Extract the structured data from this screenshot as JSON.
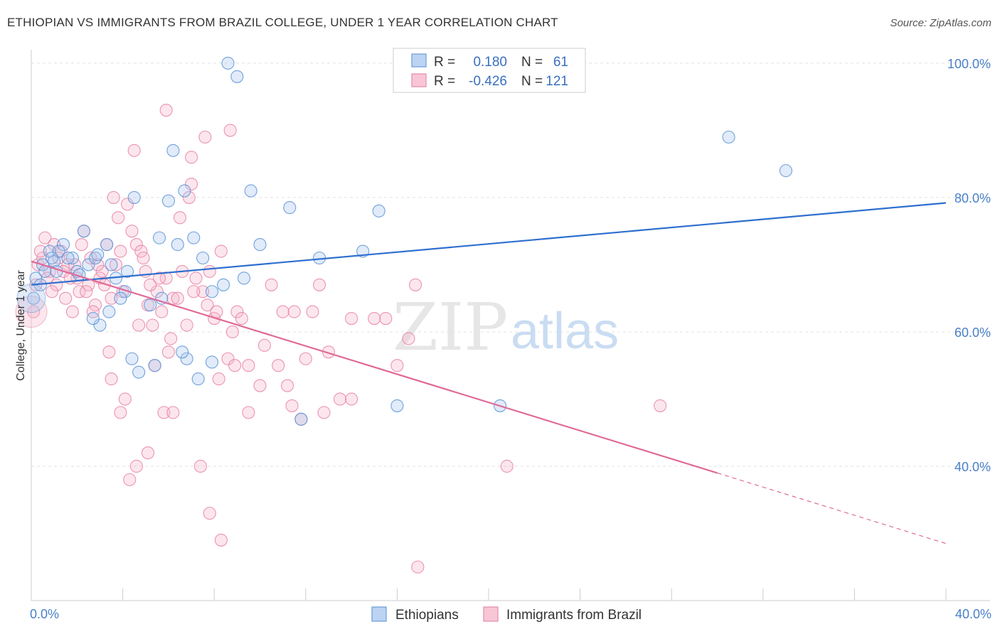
{
  "title": "ETHIOPIAN VS IMMIGRANTS FROM BRAZIL COLLEGE, UNDER 1 YEAR CORRELATION CHART",
  "source": "Source: ZipAtlas.com",
  "watermark": {
    "zip": "ZIP",
    "atlas": "atlas"
  },
  "chart_data": {
    "type": "scatter",
    "title": "ETHIOPIAN VS IMMIGRANTS FROM BRAZIL COLLEGE, UNDER 1 YEAR CORRELATION CHART",
    "xlabel": "",
    "ylabel": "College, Under 1 year",
    "xlim": [
      0,
      40
    ],
    "ylim": [
      20,
      102
    ],
    "x_tick_labels": [
      "0.0%",
      "40.0%"
    ],
    "y_ticks": [
      40,
      60,
      80,
      100
    ],
    "y_tick_labels": [
      "40.0%",
      "60.0%",
      "80.0%",
      "100.0%"
    ],
    "grid": true,
    "legend_position": "top-center",
    "colors": {
      "blue": "#5b93d6",
      "pink": "#e882a4",
      "blue_line": "#2e6fce",
      "pink_line": "#e06a98"
    },
    "stats": [
      {
        "series": "Ethiopians",
        "r_label": "R =",
        "r": "0.180",
        "n_label": "N =",
        "n": "61"
      },
      {
        "series": "Immigrants from Brazil",
        "r_label": "R =",
        "r": "-0.426",
        "n_label": "N =",
        "n": "121"
      }
    ],
    "series": [
      {
        "name": "Ethiopians",
        "color": "#5b93d6",
        "trend": {
          "x0": 0.0,
          "y0": 67.0,
          "x1": 40.0,
          "y1": 79.2,
          "dash_from": null
        },
        "points": [
          [
            0.1,
            65
          ],
          [
            0.2,
            68
          ],
          [
            0.5,
            70
          ],
          [
            0.6,
            69
          ],
          [
            0.8,
            72
          ],
          [
            1.0,
            70.5
          ],
          [
            1.1,
            69
          ],
          [
            1.4,
            73
          ],
          [
            1.8,
            71
          ],
          [
            2.0,
            69
          ],
          [
            2.3,
            75
          ],
          [
            2.5,
            70
          ],
          [
            2.8,
            71
          ],
          [
            3.0,
            61
          ],
          [
            3.3,
            73
          ],
          [
            3.5,
            70
          ],
          [
            3.7,
            68
          ],
          [
            4.1,
            66
          ],
          [
            4.5,
            80
          ],
          [
            5.2,
            64
          ],
          [
            5.6,
            74
          ],
          [
            6.0,
            79.5
          ],
          [
            6.4,
            73
          ],
          [
            6.7,
            81
          ],
          [
            7.1,
            74
          ],
          [
            7.5,
            71
          ],
          [
            7.9,
            66
          ],
          [
            8.4,
            67
          ],
          [
            9.3,
            68
          ],
          [
            9.6,
            81
          ],
          [
            10.0,
            73
          ],
          [
            11.3,
            78.5
          ],
          [
            12.6,
            71
          ],
          [
            14.5,
            72
          ],
          [
            15.2,
            78
          ],
          [
            8.6,
            100
          ],
          [
            9.0,
            98
          ],
          [
            6.2,
            87
          ],
          [
            2.7,
            62
          ],
          [
            3.4,
            63
          ],
          [
            4.4,
            56
          ],
          [
            4.7,
            54
          ],
          [
            5.4,
            55
          ],
          [
            6.8,
            56
          ],
          [
            7.9,
            55.5
          ],
          [
            11.8,
            47
          ],
          [
            16.0,
            49
          ],
          [
            20.5,
            49
          ],
          [
            30.5,
            89
          ],
          [
            33.0,
            84
          ],
          [
            1.6,
            71
          ],
          [
            2.1,
            68.5
          ],
          [
            2.9,
            71.5
          ],
          [
            3.9,
            65
          ],
          [
            4.2,
            69
          ],
          [
            5.7,
            65
          ],
          [
            6.6,
            57
          ],
          [
            7.3,
            53
          ],
          [
            1.2,
            72
          ],
          [
            0.9,
            71
          ],
          [
            0.4,
            67
          ]
        ]
      },
      {
        "name": "Immigrants from Brazil",
        "color": "#e882a4",
        "trend": {
          "x0": 0.0,
          "y0": 70.5,
          "x1": 40.0,
          "y1": 28.5,
          "dash_from": 30.0
        },
        "points": [
          [
            0.1,
            63
          ],
          [
            0.2,
            67
          ],
          [
            0.3,
            70
          ],
          [
            0.5,
            71
          ],
          [
            0.6,
            74
          ],
          [
            0.8,
            69
          ],
          [
            1.0,
            73
          ],
          [
            1.1,
            67
          ],
          [
            1.3,
            72
          ],
          [
            1.5,
            65
          ],
          [
            1.6,
            70
          ],
          [
            1.8,
            63
          ],
          [
            2.0,
            68
          ],
          [
            2.1,
            66
          ],
          [
            2.3,
            75
          ],
          [
            2.5,
            67
          ],
          [
            2.6,
            71
          ],
          [
            2.8,
            64
          ],
          [
            3.0,
            68
          ],
          [
            3.2,
            67
          ],
          [
            3.4,
            57
          ],
          [
            3.6,
            80
          ],
          [
            3.8,
            77
          ],
          [
            3.9,
            72
          ],
          [
            4.0,
            66
          ],
          [
            4.2,
            79
          ],
          [
            4.4,
            75
          ],
          [
            4.6,
            73
          ],
          [
            4.8,
            72
          ],
          [
            5.0,
            69
          ],
          [
            5.1,
            64
          ],
          [
            5.3,
            61
          ],
          [
            5.5,
            66
          ],
          [
            5.7,
            63
          ],
          [
            5.9,
            68
          ],
          [
            6.0,
            57
          ],
          [
            6.2,
            65
          ],
          [
            6.5,
            77
          ],
          [
            6.8,
            61
          ],
          [
            7.0,
            82
          ],
          [
            7.2,
            68
          ],
          [
            7.5,
            66
          ],
          [
            7.8,
            69
          ],
          [
            8.0,
            62
          ],
          [
            8.3,
            72
          ],
          [
            8.6,
            56
          ],
          [
            9.0,
            63
          ],
          [
            9.5,
            55
          ],
          [
            10.0,
            52
          ],
          [
            10.5,
            67
          ],
          [
            11.0,
            63
          ],
          [
            11.5,
            63
          ],
          [
            12.0,
            56
          ],
          [
            12.3,
            63
          ],
          [
            12.6,
            67
          ],
          [
            13.0,
            57
          ],
          [
            14.0,
            62
          ],
          [
            15.0,
            62
          ],
          [
            16.0,
            55
          ],
          [
            16.5,
            59
          ],
          [
            16.8,
            67
          ],
          [
            5.9,
            93
          ],
          [
            7.6,
            89
          ],
          [
            8.7,
            90
          ],
          [
            7.0,
            86
          ],
          [
            6.9,
            80
          ],
          [
            4.5,
            87
          ],
          [
            3.5,
            53
          ],
          [
            3.9,
            48
          ],
          [
            4.1,
            50
          ],
          [
            4.3,
            38
          ],
          [
            4.6,
            40
          ],
          [
            5.1,
            42
          ],
          [
            5.8,
            48
          ],
          [
            6.2,
            48
          ],
          [
            7.4,
            40
          ],
          [
            7.8,
            33
          ],
          [
            8.3,
            29
          ],
          [
            8.2,
            53
          ],
          [
            8.9,
            55
          ],
          [
            9.5,
            48
          ],
          [
            11.2,
            52
          ],
          [
            11.8,
            47
          ],
          [
            14.0,
            50
          ],
          [
            16.9,
            25
          ],
          [
            20.8,
            40
          ],
          [
            27.5,
            49
          ],
          [
            1.9,
            70
          ],
          [
            2.4,
            66
          ],
          [
            2.7,
            63
          ],
          [
            3.1,
            69
          ],
          [
            3.3,
            73
          ],
          [
            3.7,
            70
          ],
          [
            4.9,
            71
          ],
          [
            5.2,
            67
          ],
          [
            5.6,
            68
          ],
          [
            6.4,
            65
          ],
          [
            6.6,
            69
          ],
          [
            7.1,
            66
          ],
          [
            7.7,
            64
          ],
          [
            8.1,
            63
          ],
          [
            8.8,
            60
          ],
          [
            9.2,
            62
          ],
          [
            10.2,
            58
          ],
          [
            10.8,
            55
          ],
          [
            11.4,
            49
          ],
          [
            12.8,
            48
          ],
          [
            13.5,
            50
          ],
          [
            15.5,
            62
          ],
          [
            0.4,
            72
          ],
          [
            0.7,
            68
          ],
          [
            0.9,
            66
          ],
          [
            1.2,
            71
          ],
          [
            1.4,
            69
          ],
          [
            1.7,
            68
          ],
          [
            2.2,
            73
          ],
          [
            2.9,
            70
          ],
          [
            3.5,
            65
          ],
          [
            4.7,
            61
          ],
          [
            5.4,
            55
          ],
          [
            6.1,
            59
          ]
        ]
      }
    ]
  },
  "bottom_legend": [
    "Ethiopians",
    "Immigrants from Brazil"
  ]
}
